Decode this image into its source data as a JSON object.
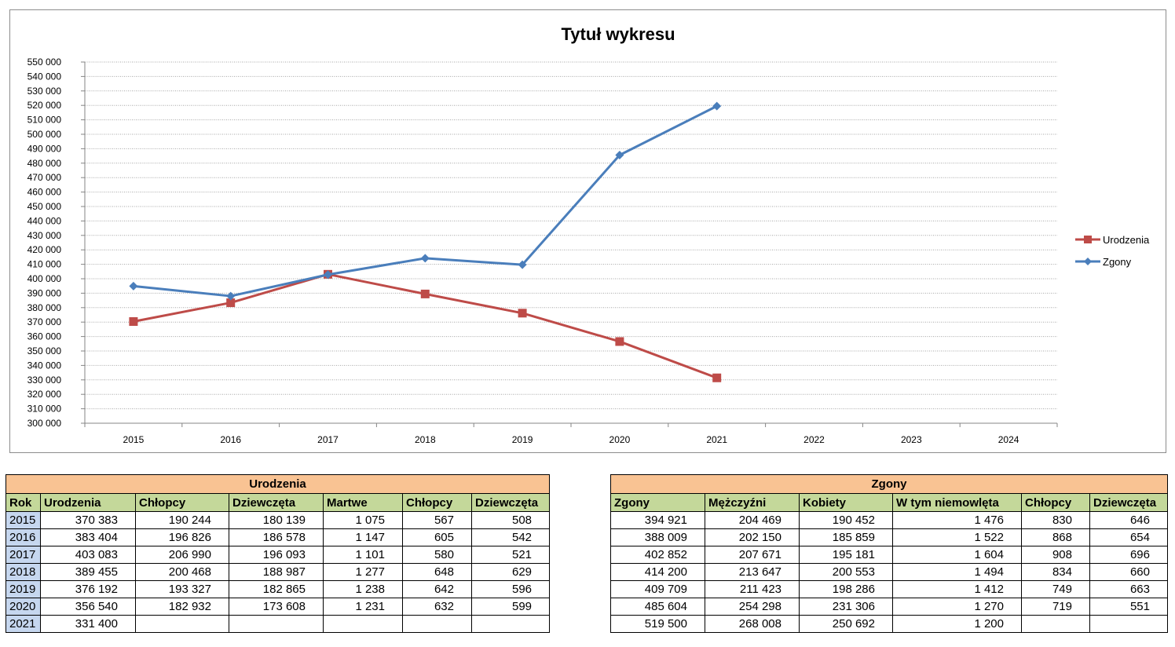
{
  "chart_data": {
    "type": "line",
    "title": "Tytuł wykresu",
    "categories": [
      "2015",
      "2016",
      "2017",
      "2018",
      "2019",
      "2020",
      "2021",
      "2022",
      "2023",
      "2024"
    ],
    "ylim": [
      300000,
      550000
    ],
    "ytick_step": 10000,
    "ytick_labels": [
      "300 000",
      "310 000",
      "320 000",
      "330 000",
      "340 000",
      "350 000",
      "360 000",
      "370 000",
      "380 000",
      "390 000",
      "400 000",
      "410 000",
      "420 000",
      "430 000",
      "440 000",
      "450 000",
      "460 000",
      "470 000",
      "480 000",
      "490 000",
      "500 000",
      "510 000",
      "520 000",
      "530 000",
      "540 000",
      "550 000"
    ],
    "grid": true,
    "legend_position": "right",
    "series": [
      {
        "name": "Urodzenia",
        "color": "#be4b48",
        "marker": "square",
        "values": [
          370383,
          383404,
          403083,
          389455,
          376192,
          356540,
          331400,
          null,
          null,
          null
        ]
      },
      {
        "name": "Zgony",
        "color": "#4a7ebb",
        "marker": "diamond",
        "values": [
          394921,
          388009,
          402852,
          414200,
          409709,
          485604,
          519500,
          null,
          null,
          null
        ]
      }
    ]
  },
  "births_table": {
    "title": "Urodzenia",
    "headers": [
      "Rok",
      "Urodzenia",
      "Chłopcy",
      "Dziewczęta",
      "Martwe",
      "Chłopcy",
      "Dziewczęta"
    ],
    "rows": [
      [
        "2015",
        "370 383",
        "190 244",
        "180 139",
        "1 075",
        "567",
        "508"
      ],
      [
        "2016",
        "383 404",
        "196 826",
        "186 578",
        "1 147",
        "605",
        "542"
      ],
      [
        "2017",
        "403 083",
        "206 990",
        "196 093",
        "1 101",
        "580",
        "521"
      ],
      [
        "2018",
        "389 455",
        "200 468",
        "188 987",
        "1 277",
        "648",
        "629"
      ],
      [
        "2019",
        "376 192",
        "193 327",
        "182 865",
        "1 238",
        "642",
        "596"
      ],
      [
        "2020",
        "356 540",
        "182 932",
        "173 608",
        "1 231",
        "632",
        "599"
      ],
      [
        "2021",
        "331 400",
        "",
        "",
        "",
        "",
        ""
      ]
    ]
  },
  "deaths_table": {
    "title": "Zgony",
    "headers": [
      "Zgony",
      "Mężczyźni",
      "Kobiety",
      "W tym niemowlęta",
      "Chłopcy",
      "Dziewczęta"
    ],
    "rows": [
      [
        "394 921",
        "204 469",
        "190 452",
        "1 476",
        "830",
        "646"
      ],
      [
        "388 009",
        "202 150",
        "185 859",
        "1 522",
        "868",
        "654"
      ],
      [
        "402 852",
        "207 671",
        "195 181",
        "1 604",
        "908",
        "696"
      ],
      [
        "414 200",
        "213 647",
        "200 553",
        "1 494",
        "834",
        "660"
      ],
      [
        "409 709",
        "211 423",
        "198 286",
        "1 412",
        "749",
        "663"
      ],
      [
        "485 604",
        "254 298",
        "231 306",
        "1 270",
        "719",
        "551"
      ],
      [
        "519 500",
        "268 008",
        "250 692",
        "1 200",
        "",
        ""
      ]
    ]
  }
}
